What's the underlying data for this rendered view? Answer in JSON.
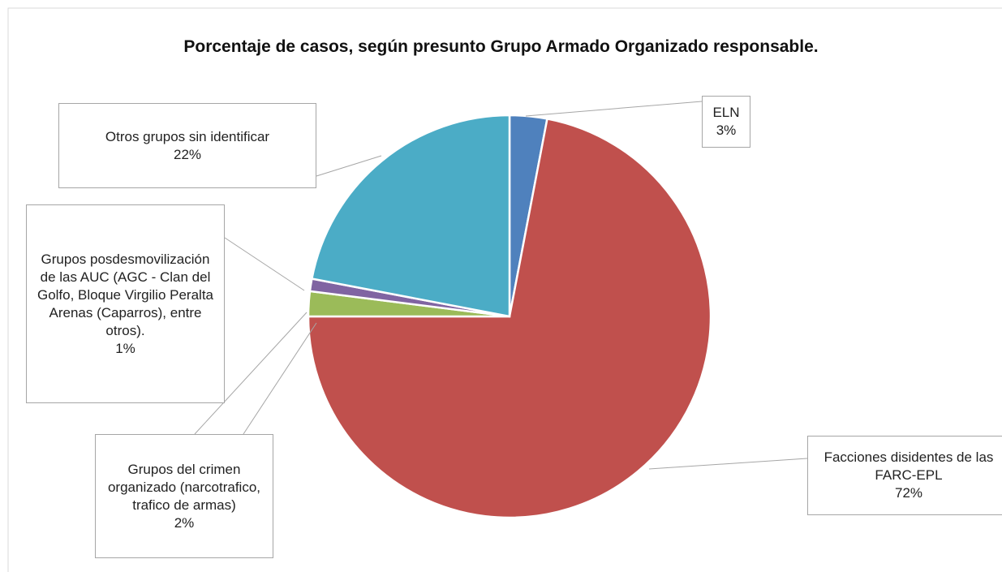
{
  "chart_data": {
    "type": "pie",
    "title": "Porcentaje de casos, según presunto Grupo Armado Organizado responsable.",
    "categories": [
      "ELN",
      "Facciones disidentes de las FARC-EPL",
      "Grupos del crimen organizado (narcotrafico, trafico de armas)",
      "Grupos posdesmovilización de las AUC (AGC - Clan del Golfo, Bloque Virgilio Peralta Arenas (Caparros), entre otros).",
      "Otros grupos sin identificar"
    ],
    "values": [
      3,
      72,
      2,
      1,
      22
    ],
    "value_labels": [
      "3%",
      "72%",
      "2%",
      "1%",
      "22%"
    ],
    "colors": [
      "#4f81bd",
      "#c0504d",
      "#9bbb59",
      "#8064a2",
      "#4bacc6"
    ]
  }
}
